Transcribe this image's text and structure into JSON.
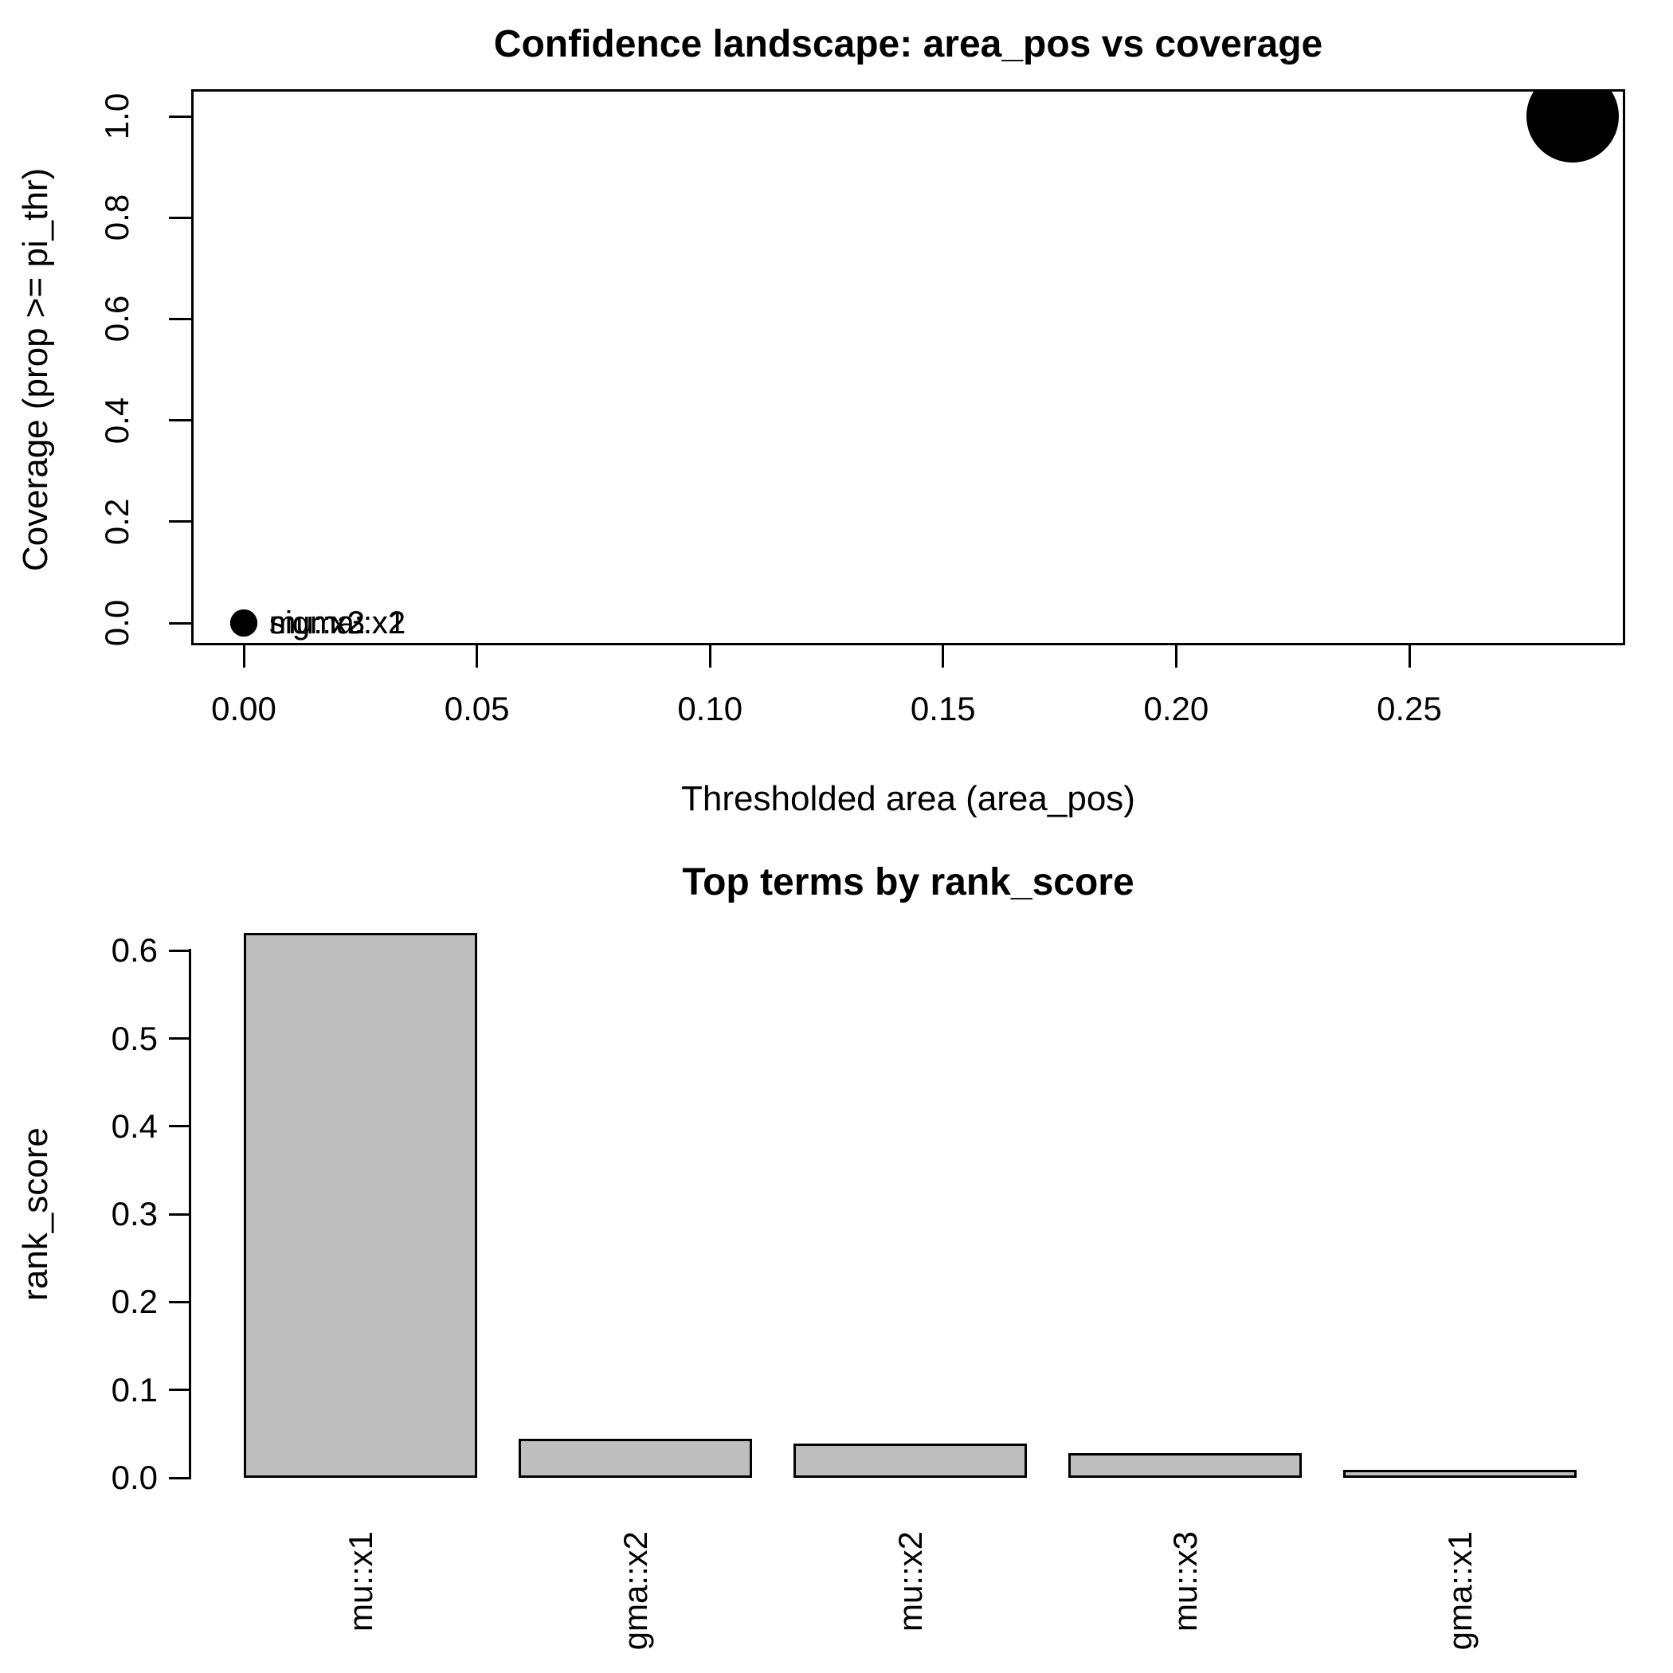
{
  "figure": {
    "background": "#ffffff",
    "foreground": "#000000"
  },
  "chart_data": [
    {
      "type": "scatter",
      "title": "Confidence landscape: area_pos vs coverage",
      "xlabel": "Thresholded area (area_pos)",
      "ylabel": "Coverage (prop >= pi_thr)",
      "xlim": [
        -0.011,
        0.297
      ],
      "ylim": [
        -0.04,
        1.04
      ],
      "grid": false,
      "xticks": {
        "values": [
          0.0,
          0.05,
          0.1,
          0.15,
          0.2,
          0.25
        ],
        "labels": [
          "0.00",
          "0.05",
          "0.10",
          "0.15",
          "0.20",
          "0.25"
        ]
      },
      "yticks": {
        "values": [
          0.0,
          0.2,
          0.4,
          0.6,
          0.8,
          1.0
        ],
        "labels": [
          "0.0",
          "0.2",
          "0.4",
          "0.6",
          "0.8",
          "1.0"
        ]
      },
      "point_color": "#000000",
      "points": [
        {
          "term": "sigma::x2",
          "x": 0.0,
          "y": 0.0,
          "radius_px": 17
        },
        {
          "term": "sigma::x1",
          "x": 0.0,
          "y": 0.0,
          "radius_px": 17
        },
        {
          "term": "mu::x2",
          "x": 0.0,
          "y": 0.0,
          "radius_px": 17
        },
        {
          "term": "mu::x3",
          "x": 0.0,
          "y": 0.0,
          "radius_px": 17
        },
        {
          "term": "mu::x1",
          "x": 0.285,
          "y": 1.0,
          "radius_px": 58
        }
      ]
    },
    {
      "type": "bar",
      "title": "Top terms by rank_score",
      "xlabel": "",
      "ylabel": "rank_score",
      "ylim": [
        0,
        0.62
      ],
      "grid": false,
      "categories": [
        "mu::x1",
        "gma::x2",
        "mu::x2",
        "mu::x3",
        "gma::x1"
      ],
      "values": [
        0.62,
        0.044,
        0.039,
        0.028,
        0.009
      ],
      "yticks": {
        "values": [
          0.0,
          0.1,
          0.2,
          0.3,
          0.4,
          0.5,
          0.6
        ],
        "labels": [
          "0.0",
          "0.1",
          "0.2",
          "0.3",
          "0.4",
          "0.5",
          "0.6"
        ]
      },
      "bar_fill": "#bebebe",
      "bar_border": "#000000"
    }
  ]
}
